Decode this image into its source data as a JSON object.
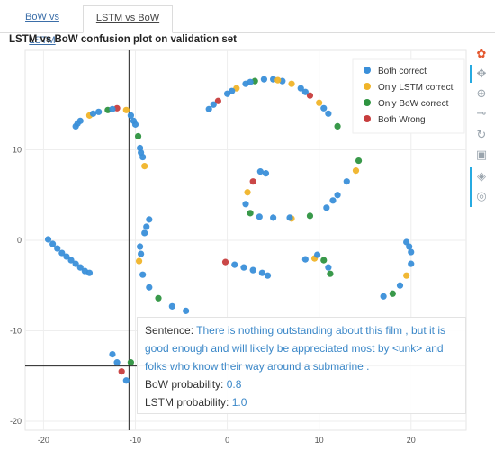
{
  "tabs": [
    "BoW vs LSTM",
    "LSTM vs BoW"
  ],
  "chart_data": {
    "type": "scatter",
    "title": "LSTM vs BoW confusion plot on validation set",
    "xlabel": "",
    "ylabel": "",
    "xlim": [
      -22,
      26
    ],
    "ylim": [
      -21,
      21
    ],
    "xticks": [
      -20,
      -10,
      0,
      10,
      20
    ],
    "yticks": [
      -20,
      -10,
      0,
      10
    ],
    "grid": true,
    "legend_position": "top-right",
    "legend": [
      "Both correct",
      "Only LSTM correct",
      "Only BoW correct",
      "Both Wrong"
    ],
    "colors": [
      "#3a8fd9",
      "#f0b429",
      "#2e9440",
      "#c73d3d"
    ],
    "crosshair": {
      "x": -10.7,
      "y": -13.9
    },
    "clusters": [
      {
        "points": [
          [
            -19.5,
            0.1
          ],
          [
            -19,
            -0.4
          ],
          [
            -18.5,
            -0.9
          ],
          [
            -18,
            -1.4
          ],
          [
            -17.5,
            -1.8
          ],
          [
            -17,
            -2.2
          ],
          [
            -16.5,
            -2.6
          ],
          [
            -16,
            -3.0
          ],
          [
            -15.5,
            -3.4
          ],
          [
            -15,
            -3.6
          ]
        ]
      },
      {
        "points": [
          [
            -16.5,
            12.6
          ],
          [
            -16,
            13.2
          ],
          [
            -15,
            13.8
          ],
          [
            -14,
            14.2
          ],
          [
            -13,
            14.4
          ],
          [
            -12,
            14.6
          ],
          [
            -11,
            14.4
          ],
          [
            -10.5,
            13.8
          ],
          [
            -10,
            12.8
          ],
          [
            -9.7,
            11.5
          ],
          [
            -9.5,
            10.2
          ],
          [
            -9.2,
            9.2
          ],
          [
            -9,
            8.2
          ],
          [
            -16.3,
            12.9
          ],
          [
            -14.6,
            14.0
          ],
          [
            -12.5,
            14.5
          ],
          [
            -10.2,
            13.2
          ],
          [
            -9.4,
            9.7
          ]
        ],
        "orange": [
          2,
          6,
          12
        ],
        "green": [
          4,
          9
        ],
        "red": [
          5
        ]
      },
      {
        "points": [
          [
            -2,
            14.5
          ],
          [
            -1,
            15.4
          ],
          [
            0,
            16.2
          ],
          [
            1,
            16.8
          ],
          [
            2,
            17.3
          ],
          [
            3,
            17.6
          ],
          [
            4,
            17.8
          ],
          [
            5,
            17.8
          ],
          [
            6,
            17.6
          ],
          [
            7,
            17.3
          ],
          [
            8,
            16.8
          ],
          [
            9,
            16.0
          ],
          [
            10,
            15.2
          ],
          [
            11,
            14.0
          ],
          [
            12,
            12.6
          ],
          [
            -1.5,
            15
          ],
          [
            0.5,
            16.5
          ],
          [
            2.5,
            17.5
          ],
          [
            5.5,
            17.7
          ],
          [
            8.5,
            16.4
          ],
          [
            10.5,
            14.6
          ]
        ],
        "orange": [
          3,
          9,
          12,
          18
        ],
        "green": [
          5,
          14
        ],
        "red": [
          1,
          11
        ]
      },
      {
        "points": [
          [
            3.6,
            7.6
          ],
          [
            2.8,
            6.5
          ],
          [
            2.2,
            5.3
          ],
          [
            2.0,
            4.0
          ],
          [
            2.5,
            3.0
          ],
          [
            3.5,
            2.6
          ],
          [
            5.0,
            2.5
          ],
          [
            7.0,
            2.4
          ],
          [
            9.0,
            2.7
          ],
          [
            10.8,
            3.6
          ],
          [
            12.0,
            5.0
          ],
          [
            13.0,
            6.5
          ],
          [
            14.0,
            7.7
          ],
          [
            14.3,
            8.8
          ],
          [
            4.2,
            7.4
          ],
          [
            6.8,
            2.5
          ],
          [
            11.5,
            4.4
          ]
        ],
        "orange": [
          2,
          7,
          12
        ],
        "green": [
          4,
          8,
          13
        ],
        "red": [
          1
        ]
      },
      {
        "points": [
          [
            -8.5,
            2.3
          ],
          [
            -9,
            0.8
          ],
          [
            -9.5,
            -0.7
          ],
          [
            -9.6,
            -2.3
          ],
          [
            -9.2,
            -3.8
          ],
          [
            -8.5,
            -5.2
          ],
          [
            -7.5,
            -6.4
          ],
          [
            -6.0,
            -7.3
          ],
          [
            -4.5,
            -7.8
          ],
          [
            -8.8,
            1.5
          ],
          [
            -9.4,
            -1.5
          ]
        ],
        "orange": [
          3
        ],
        "green": [
          6
        ]
      },
      {
        "points": [
          [
            -0.2,
            -2.4
          ],
          [
            0.8,
            -2.7
          ],
          [
            1.8,
            -3.0
          ],
          [
            2.8,
            -3.3
          ],
          [
            3.8,
            -3.6
          ],
          [
            4.4,
            -3.9
          ]
        ],
        "red": [
          0
        ]
      },
      {
        "points": [
          [
            8.5,
            -2.1
          ],
          [
            9.5,
            -2.0
          ],
          [
            10.5,
            -2.2
          ],
          [
            11,
            -3.0
          ],
          [
            11.2,
            -3.7
          ],
          [
            9.8,
            -1.6
          ]
        ],
        "orange": [
          1
        ],
        "green": [
          2,
          4
        ]
      },
      {
        "points": [
          [
            19.5,
            -0.2
          ],
          [
            20,
            -1.3
          ],
          [
            20,
            -2.6
          ],
          [
            19.5,
            -3.9
          ],
          [
            18.8,
            -5.0
          ],
          [
            18,
            -5.9
          ],
          [
            17.0,
            -6.2
          ],
          [
            19.8,
            -0.7
          ]
        ],
        "orange": [
          3
        ],
        "green": [
          5
        ]
      },
      {
        "points": [
          [
            -12.5,
            -12.6
          ],
          [
            -12,
            -13.5
          ],
          [
            -11.5,
            -14.5
          ],
          [
            -11,
            -15.5
          ],
          [
            -10.5,
            -13.5
          ]
        ],
        "red": [
          2
        ],
        "green": [
          4
        ]
      }
    ]
  },
  "tooltip": {
    "sentence_label": "Sentence:",
    "sentence_line1": "There is nothing outstanding about this film , but it is",
    "sentence_line2": "good enough and will likely be appreciated most by <unk> and",
    "sentence_line3": "folks who know their way around a submarine .",
    "bow_label": "BoW probability:",
    "bow_value": "0.8",
    "lstm_label": "LSTM probability:",
    "lstm_value": "1.0"
  },
  "toolbar": [
    "logo-icon",
    "pan-icon",
    "box-zoom-icon",
    "wheel-zoom-icon",
    "reset-icon",
    "save-icon",
    "hover-icon",
    "help-icon"
  ]
}
